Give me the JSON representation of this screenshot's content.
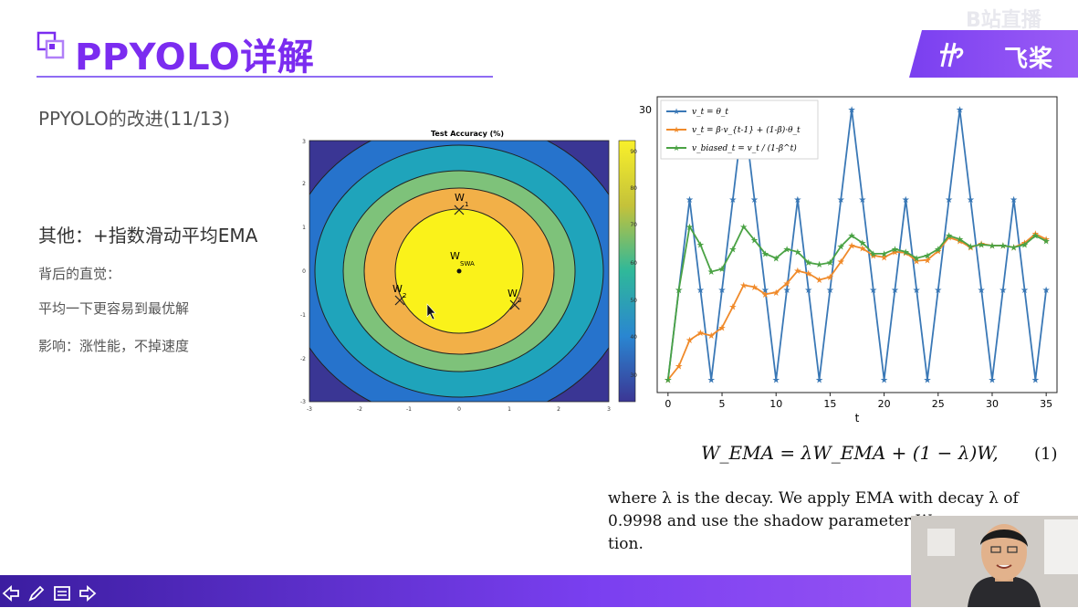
{
  "header": {
    "title": "PPYOLO详解",
    "logo_text": "飞桨",
    "watermark": "B站直播"
  },
  "content": {
    "subtitle": "PPYOLO的改进(11/13)",
    "section_title": "其他：+指数滑动平均EMA",
    "bullet1": "背后的直觉：",
    "bullet2": "平均一下更容易到最优解",
    "bullet3": "影响：涨性能，不掉速度"
  },
  "contour_chart": {
    "title": "Test Accuracy (%)",
    "x_ticks": [
      "-3",
      "-2",
      "-1",
      "0",
      "1",
      "2",
      "3"
    ],
    "y_ticks": [
      "3",
      "2",
      "1",
      "0",
      "-1",
      "-2",
      "-3"
    ],
    "colorbar_ticks": [
      "90",
      "80",
      "70",
      "60",
      "50",
      "40",
      "30"
    ],
    "labels": {
      "w1": "W",
      "w1_sub": "1",
      "w2": "W",
      "w2_sub": "2",
      "w3": "W",
      "w3_sub": "3",
      "wswa": "W",
      "wswa_sub": "SWA"
    }
  },
  "chart_data": {
    "type": "line",
    "xlabel": "t",
    "ylabel": "",
    "xlim": [
      -1,
      36
    ],
    "ylim": [
      0,
      30
    ],
    "x_ticks": [
      "0",
      "5",
      "10",
      "15",
      "20",
      "25",
      "30",
      "35"
    ],
    "y_ticks": [
      "30"
    ],
    "legend_position": "top-left",
    "x": [
      0,
      1,
      2,
      3,
      4,
      5,
      6,
      7,
      8,
      9,
      10,
      11,
      12,
      13,
      14,
      15,
      16,
      17,
      18,
      19,
      20,
      21,
      22,
      23,
      24,
      25,
      26,
      27,
      28,
      29,
      30,
      31,
      32,
      33,
      34,
      35
    ],
    "series": [
      {
        "name": "v_t = θ_t",
        "color": "#3a78b6",
        "values": [
          0,
          10,
          20,
          10,
          0,
          10,
          20,
          30,
          20,
          10,
          0,
          10,
          20,
          10,
          0,
          10,
          20,
          30,
          20,
          10,
          0,
          10,
          20,
          10,
          0,
          10,
          20,
          30,
          20,
          10,
          0,
          10,
          20,
          10,
          0,
          10
        ]
      },
      {
        "name": "v_t = β·v_{t-1} + (1-β)·θ_t",
        "color": "#f08a2a",
        "values": [
          0,
          1.5,
          4.4,
          5.2,
          4.9,
          5.8,
          8.1,
          10.5,
          10.3,
          9.5,
          9.7,
          10.7,
          12.1,
          11.8,
          11.1,
          11.4,
          13.1,
          14.9,
          14.6,
          13.8,
          13.6,
          14.2,
          14.1,
          13.2,
          13.3,
          14.3,
          15.8,
          15.4,
          14.7,
          15.1,
          14.9,
          14.9,
          14.7,
          15.2,
          16.2,
          15.6
        ]
      },
      {
        "name": "v_biased_t = v_t / (1-β^t)",
        "color": "#4aa244",
        "values": [
          0,
          10,
          17,
          15,
          12,
          12.3,
          14.5,
          17,
          15.5,
          14,
          13.5,
          14.5,
          14.2,
          13,
          12.8,
          13,
          14.8,
          16,
          15.2,
          14,
          14,
          14.5,
          14.2,
          13.5,
          13.8,
          14.5,
          16,
          15.6,
          14.8,
          15,
          14.9,
          14.9,
          14.7,
          15,
          16,
          15.4
        ]
      }
    ]
  },
  "paper": {
    "formula": "W_EMA = λW_EMA + (1 − λ)W,",
    "formula_number": "(1)",
    "line1": "where λ is the decay.  We apply EMA with decay λ of",
    "line2": "0.9998 and use the shadow parameter W",
    "line3": "tion."
  },
  "colors": {
    "accent": "#7b2cf0",
    "bar_start": "#3b1da0",
    "bar_end": "#a25bf5"
  }
}
